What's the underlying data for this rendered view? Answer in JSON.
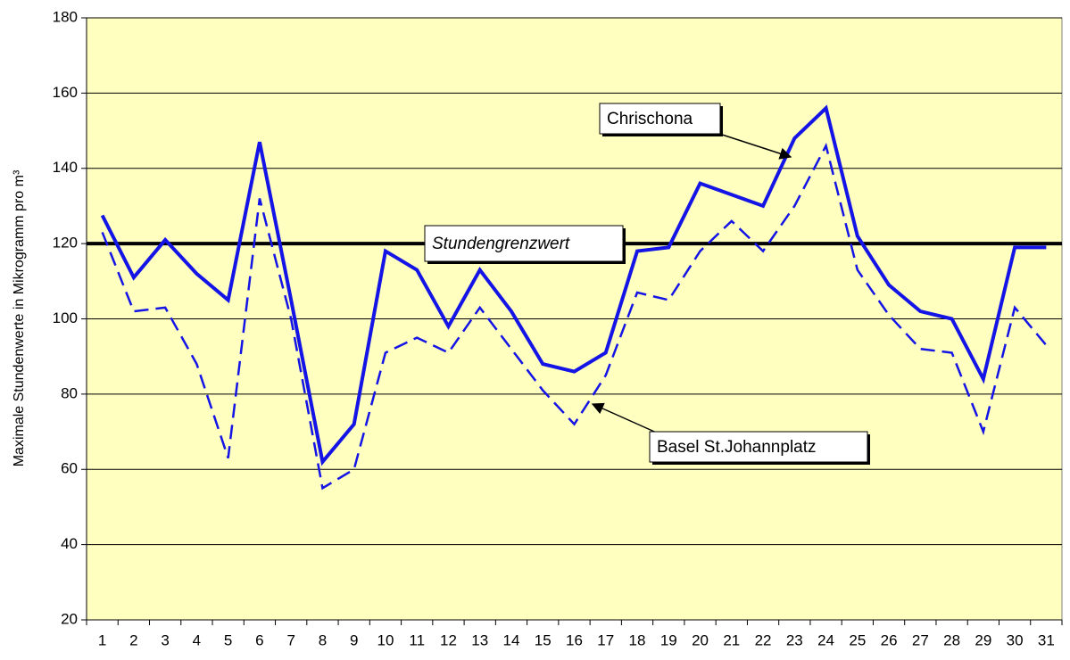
{
  "chart_data": {
    "type": "line",
    "y_label": "Maximale Stundenwerte in Mikrogramm pro m³",
    "categories": [
      "1",
      "2",
      "3",
      "4",
      "5",
      "6",
      "7",
      "8",
      "9",
      "10",
      "11",
      "12",
      "13",
      "14",
      "15",
      "16",
      "17",
      "18",
      "19",
      "20",
      "21",
      "22",
      "23",
      "24",
      "25",
      "26",
      "27",
      "28",
      "29",
      "30",
      "31"
    ],
    "series": [
      {
        "name": "Chrischona",
        "color": "#1414e6",
        "dash": false,
        "values": [
          127.5,
          111,
          121,
          112,
          105,
          147,
          105,
          62,
          72,
          118,
          113,
          98,
          113,
          102,
          88,
          86,
          91,
          118,
          119,
          136,
          133,
          130,
          148,
          156,
          122,
          109,
          102,
          100,
          84,
          119,
          119
        ]
      },
      {
        "name": "Basel St.Johannplatz",
        "color": "#1414e6",
        "dash": true,
        "values": [
          123,
          102,
          103,
          88,
          63,
          132,
          100,
          55,
          60,
          91,
          95,
          91,
          103,
          92,
          81,
          72,
          85,
          107,
          105,
          118,
          126,
          118,
          130,
          146,
          113,
          101,
          92,
          91,
          70,
          103,
          93
        ]
      }
    ],
    "threshold": {
      "value": 120,
      "label": "Stundengrenzwert",
      "color": "#000000"
    },
    "ylim": [
      20,
      180
    ],
    "yticks": [
      20,
      40,
      60,
      80,
      100,
      120,
      140,
      160,
      180
    ],
    "grid": true,
    "background": "#ffffc0"
  }
}
